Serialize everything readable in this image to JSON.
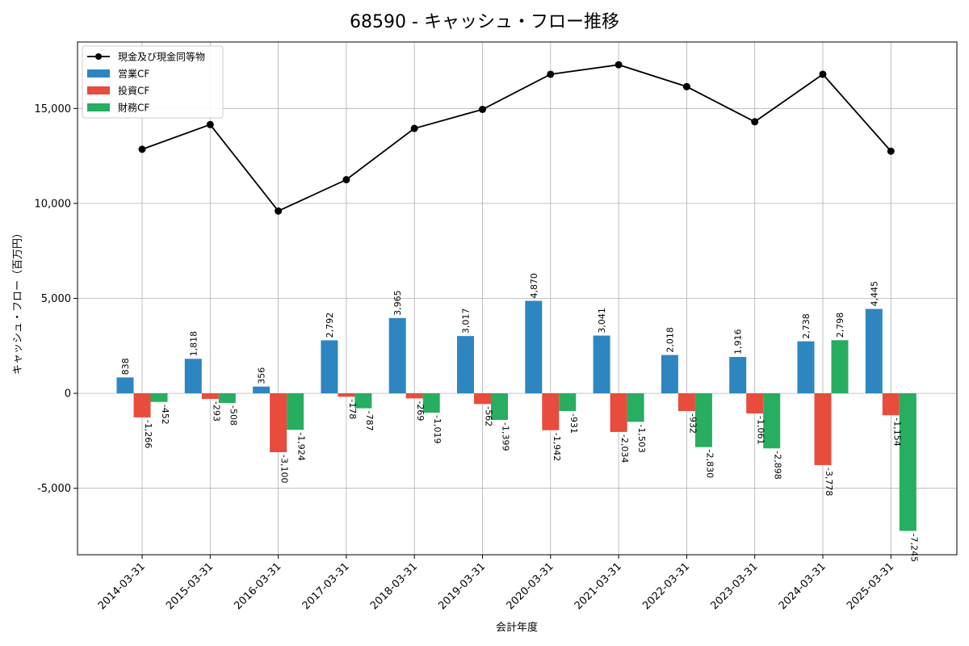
{
  "chart_data": {
    "type": "bar",
    "title": "68590 - キャッシュ・フロー推移",
    "xlabel": "会計年度",
    "ylabel": "キャッシュ・フロー（百万円）",
    "ylim": [
      -8500,
      18500
    ],
    "yticks": [
      -5000,
      0,
      5000,
      10000,
      15000
    ],
    "ytick_labels": [
      "-5,000",
      "0",
      "5,000",
      "10,000",
      "15,000"
    ],
    "grid": true,
    "legend_position": "top-left",
    "categories": [
      "2014-03-31",
      "2015-03-31",
      "2016-03-31",
      "2017-03-31",
      "2018-03-31",
      "2019-03-31",
      "2020-03-31",
      "2021-03-31",
      "2022-03-31",
      "2023-03-31",
      "2024-03-31",
      "2025-03-31"
    ],
    "series": [
      {
        "name": "営業CF",
        "kind": "bar",
        "color": "#2e86c1",
        "values": [
          838,
          1818,
          356,
          2792,
          3965,
          3017,
          4870,
          3041,
          2018,
          1916,
          2738,
          4445
        ],
        "labels": [
          "838",
          "1,818",
          "356",
          "2,792",
          "3,965",
          "3,017",
          "4,870",
          "3,041",
          "2,018",
          "1,916",
          "2,738",
          "4,445"
        ]
      },
      {
        "name": "投資CF",
        "kind": "bar",
        "color": "#e74c3c",
        "values": [
          -1266,
          -293,
          -3100,
          -178,
          -269,
          -562,
          -1942,
          -2034,
          -932,
          -1061,
          -3778,
          -1154
        ],
        "labels": [
          "-1,266",
          "-293",
          "-3,100",
          "-178",
          "-269",
          "-562",
          "-1,942",
          "-2,034",
          "-932",
          "-1,061",
          "-3,778",
          "-1,154"
        ]
      },
      {
        "name": "財務CF",
        "kind": "bar",
        "color": "#27ae60",
        "values": [
          -452,
          -508,
          -1924,
          -787,
          -1019,
          -1399,
          -931,
          -1503,
          -2830,
          -2898,
          2798,
          -7245
        ],
        "labels": [
          "-452",
          "-508",
          "-1,924",
          "-787",
          "-1,019",
          "-1,399",
          "-931",
          "-1,503",
          "-2,830",
          "-2,898",
          "2,798",
          "-7,245"
        ]
      },
      {
        "name": "現金及び現金同等物",
        "kind": "line",
        "color": "#000000",
        "values": [
          12850,
          14150,
          9600,
          11250,
          13950,
          14950,
          16800,
          17300,
          16150,
          14300,
          16800,
          12750
        ]
      }
    ]
  }
}
